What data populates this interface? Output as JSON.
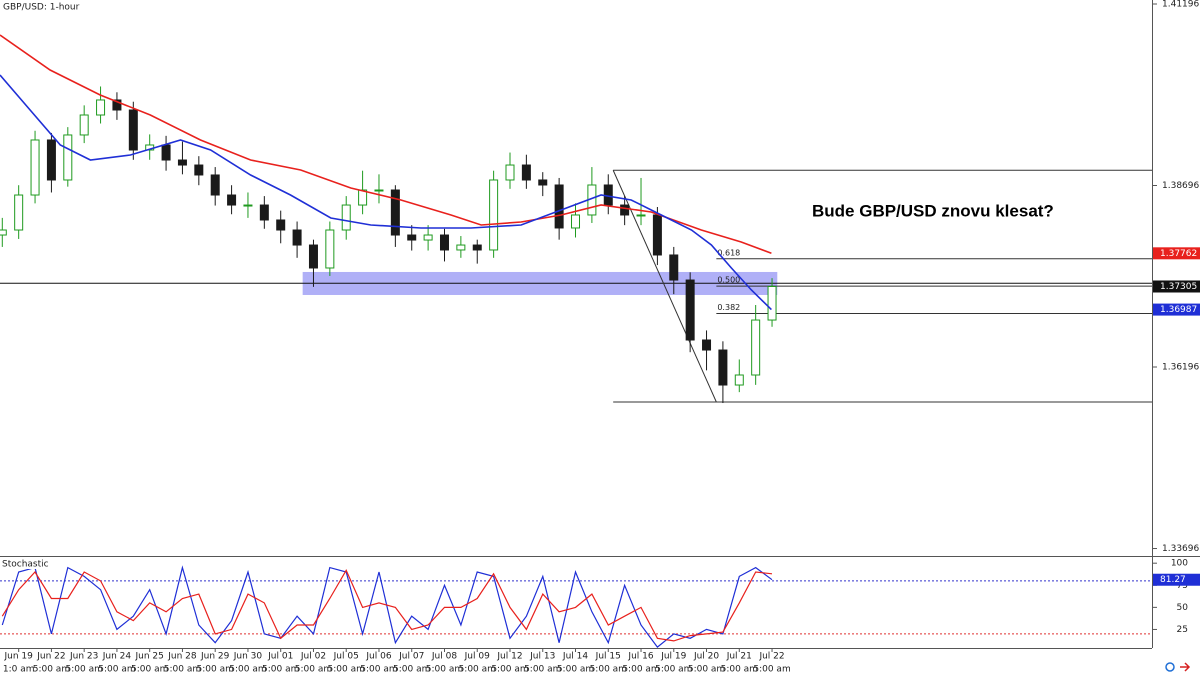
{
  "chart_data": [
    {
      "type": "candlestick",
      "title": "GBP/USD: 1-hour",
      "annotation": "Bude GBP/USD znovu klesat?",
      "up_color": "#1f9a1f",
      "down_color": "#1a1a1a",
      "xlim": [
        -0.57,
        34.6
      ],
      "ylim": [
        1.33593,
        1.41251
      ],
      "yticks": [
        1.41196,
        1.38696,
        1.36196,
        1.33696
      ],
      "xticks": [
        {
          "value": 0,
          "label": "Jun 19"
        },
        {
          "value": 1,
          "label": "Jun 22"
        },
        {
          "value": 2,
          "label": "Jun 23"
        },
        {
          "value": 3,
          "label": "Jun 24"
        },
        {
          "value": 4,
          "label": "Jun 25"
        },
        {
          "value": 5,
          "label": "Jun 28"
        },
        {
          "value": 6,
          "label": "Jun 29"
        },
        {
          "value": 7,
          "label": "Jun 30"
        },
        {
          "value": 8,
          "label": "Jul 01"
        },
        {
          "value": 9,
          "label": "Jul 02"
        },
        {
          "value": 10,
          "label": "Jul 05"
        },
        {
          "value": 11,
          "label": "Jul 06"
        },
        {
          "value": 12,
          "label": "Jul 07"
        },
        {
          "value": 13,
          "label": "Jul 08"
        },
        {
          "value": 14,
          "label": "Jul 09"
        },
        {
          "value": 15,
          "label": "Jul 12"
        },
        {
          "value": 16,
          "label": "Jul 13"
        },
        {
          "value": 17,
          "label": "Jul 14"
        },
        {
          "value": 18,
          "label": "Jul 15"
        },
        {
          "value": 19,
          "label": "Jul 16"
        },
        {
          "value": 20,
          "label": "Jul 19"
        },
        {
          "value": 21,
          "label": "Jul 20"
        },
        {
          "value": 22,
          "label": "Jul 21"
        },
        {
          "value": 23,
          "label": "Jul 22"
        }
      ],
      "xtick_sublabels": [
        "1:0 am",
        "5:00 am",
        "5:00 am",
        "5:00 am",
        "5:00 am",
        "5:00 am",
        "5:00 am",
        "5:00 am",
        "5:00 am",
        "5:00 am",
        "5:00 am",
        "5:00 am",
        "5:00 am",
        "5:00 am",
        "5:00 am",
        "5:00 am",
        "5:00 am",
        "5:00 am",
        "5:00 am",
        "5:00 am",
        "5:00 am",
        "5:00 am",
        "5:00 am",
        "5:00 am"
      ],
      "x": [
        -0.5,
        0,
        0.5,
        1,
        1.5,
        2,
        2.5,
        3,
        3.5,
        4,
        4.5,
        5,
        5.5,
        6,
        6.5,
        7,
        7.5,
        8,
        8.5,
        9,
        9.5,
        10,
        10.5,
        11,
        11.5,
        12,
        12.5,
        13,
        13.5,
        14,
        14.5,
        15,
        15.5,
        16,
        16.5,
        17,
        17.5,
        18,
        18.5,
        19,
        19.5,
        20,
        20.5,
        21,
        21.5,
        22,
        22.5,
        23
      ],
      "open": [
        1.38014,
        1.38083,
        1.38565,
        1.39323,
        1.38772,
        1.39392,
        1.39667,
        1.39874,
        1.39736,
        1.39185,
        1.39254,
        1.39047,
        1.38978,
        1.38841,
        1.38565,
        1.38427,
        1.38427,
        1.38221,
        1.38083,
        1.37876,
        1.3756,
        1.38083,
        1.38427,
        1.38634,
        1.38634,
        1.38014,
        1.37945,
        1.38014,
        1.37808,
        1.37876,
        1.37808,
        1.38772,
        1.38978,
        1.38772,
        1.38703,
        1.38111,
        1.3829,
        1.38703,
        1.38427,
        1.3829,
        1.3829,
        1.37739,
        1.37394,
        1.36568,
        1.3643,
        1.35948,
        1.36086,
        1.36843
      ],
      "high": [
        1.3825,
        1.387,
        1.3945,
        1.3942,
        1.395,
        1.398,
        1.4006,
        1.3998,
        1.3985,
        1.394,
        1.3938,
        1.393,
        1.391,
        1.3895,
        1.387,
        1.386,
        1.3855,
        1.3835,
        1.382,
        1.3795,
        1.382,
        1.3855,
        1.389,
        1.3885,
        1.387,
        1.3815,
        1.3815,
        1.381,
        1.38,
        1.3795,
        1.389,
        1.3915,
        1.3912,
        1.3888,
        1.388,
        1.3845,
        1.3895,
        1.3885,
        1.3855,
        1.388,
        1.384,
        1.3785,
        1.375,
        1.367,
        1.3655,
        1.363,
        1.3705,
        1.3742
      ],
      "low": [
        1.3785,
        1.3796,
        1.3845,
        1.386,
        1.3868,
        1.3928,
        1.3955,
        1.396,
        1.3905,
        1.3905,
        1.389,
        1.3885,
        1.387,
        1.3842,
        1.383,
        1.3825,
        1.381,
        1.379,
        1.377,
        1.373,
        1.3745,
        1.3795,
        1.383,
        1.3845,
        1.3785,
        1.378,
        1.378,
        1.3765,
        1.377,
        1.3762,
        1.377,
        1.3865,
        1.3865,
        1.3855,
        1.3795,
        1.3798,
        1.3818,
        1.383,
        1.3815,
        1.3815,
        1.376,
        1.372,
        1.364,
        1.3615,
        1.357,
        1.3585,
        1.3595,
        1.3675
      ],
      "close": [
        1.38083,
        1.38565,
        1.39323,
        1.38772,
        1.39392,
        1.39667,
        1.39874,
        1.39736,
        1.39185,
        1.39254,
        1.39047,
        1.38978,
        1.38841,
        1.38565,
        1.38427,
        1.38427,
        1.38221,
        1.38083,
        1.37876,
        1.3756,
        1.38083,
        1.38427,
        1.38634,
        1.38634,
        1.38014,
        1.37945,
        1.38014,
        1.37808,
        1.37876,
        1.37808,
        1.38772,
        1.38978,
        1.38772,
        1.38703,
        1.38111,
        1.3829,
        1.38703,
        1.38427,
        1.3829,
        1.3829,
        1.37739,
        1.37394,
        1.36568,
        1.3643,
        1.35948,
        1.36086,
        1.36843,
        1.37305
      ],
      "close_badge_color": "#111111",
      "overlays": [
        {
          "color": "#e8211d",
          "x": [
            -0.57,
            0.96,
            2.49,
            4.02,
            5.55,
            7.08,
            8.61,
            10.14,
            11.67,
            13.2,
            14.12,
            15.34,
            16.56,
            17.78,
            19.31,
            20.84,
            22.06,
            22.98
          ],
          "values": [
            1.40769,
            1.40287,
            1.39943,
            1.39667,
            1.39323,
            1.39047,
            1.38909,
            1.38662,
            1.38496,
            1.3829,
            1.38152,
            1.38193,
            1.3829,
            1.38427,
            1.38331,
            1.38083,
            1.37918,
            1.37762
          ]
        },
        {
          "color": "#1f2fd6",
          "x": [
            -0.57,
            0.35,
            1.27,
            2.19,
            3.41,
            4.94,
            5.86,
            7.08,
            8.3,
            9.53,
            10.75,
            12.28,
            13.81,
            15.34,
            16.56,
            17.78,
            18.7,
            19.62,
            20.54,
            21.15,
            21.76,
            22.37,
            22.98
          ],
          "values": [
            1.40218,
            1.39736,
            1.39254,
            1.39047,
            1.39116,
            1.39323,
            1.39185,
            1.38841,
            1.38565,
            1.38248,
            1.38152,
            1.38111,
            1.38111,
            1.38152,
            1.38359,
            1.38565,
            1.38496,
            1.3829,
            1.38083,
            1.37876,
            1.3756,
            1.37257,
            1.36987
          ]
        }
      ],
      "hline": 1.3735,
      "zone": {
        "x": [
          8.67,
          23.16
        ],
        "y": [
          1.37188,
          1.37505
        ],
        "color": "#6f6ff0"
      },
      "fibonacci": {
        "x": [
          18.15,
          21.3
        ],
        "high": 1.38906,
        "low": 1.35714,
        "levels": [
          {
            "value": 0.618,
            "label": "0.618"
          },
          {
            "value": 0.5,
            "label": "0.500"
          },
          {
            "value": 0.382,
            "label": "0.382"
          }
        ]
      }
    },
    {
      "type": "line",
      "title": "Stochastic",
      "xlim": [
        -0.57,
        34.6
      ],
      "ylim": [
        4,
        107
      ],
      "yticks": [
        100,
        75,
        50,
        25
      ],
      "level_lines": [
        80,
        20
      ],
      "level_colors": [
        "#3333cc",
        "#e03030"
      ],
      "x": [
        -0.5,
        0,
        0.5,
        1,
        1.5,
        2,
        2.5,
        3,
        3.5,
        4,
        4.5,
        5,
        5.5,
        6,
        6.5,
        7,
        7.5,
        8,
        8.5,
        9,
        9.5,
        10,
        10.5,
        11,
        11.5,
        12,
        12.5,
        13,
        13.5,
        14,
        14.5,
        15,
        15.5,
        16,
        16.5,
        17,
        17.5,
        18,
        18.5,
        19,
        19.5,
        20,
        20.5,
        21,
        21.5,
        22,
        22.5,
        23
      ],
      "series": [
        {
          "color": "#1f2fd6",
          "values": [
            30,
            90,
            95,
            20,
            95,
            85,
            70,
            25,
            40,
            70,
            20,
            95,
            30,
            10,
            35,
            90,
            20,
            15,
            40,
            20,
            95,
            90,
            20,
            90,
            10,
            40,
            25,
            75,
            30,
            90,
            85,
            15,
            40,
            85,
            10,
            90,
            45,
            10,
            75,
            30,
            5,
            20,
            15,
            25,
            20,
            85,
            95,
            81.27
          ]
        },
        {
          "color": "#e8211d",
          "values": [
            40,
            70,
            90,
            60,
            60,
            90,
            80,
            45,
            35,
            55,
            45,
            60,
            65,
            20,
            25,
            65,
            55,
            15,
            30,
            30,
            60,
            92,
            50,
            55,
            50,
            25,
            30,
            50,
            50,
            60,
            88,
            50,
            25,
            65,
            45,
            50,
            65,
            30,
            40,
            50,
            15,
            12,
            18,
            20,
            22,
            55,
            90,
            88
          ]
        }
      ]
    }
  ]
}
